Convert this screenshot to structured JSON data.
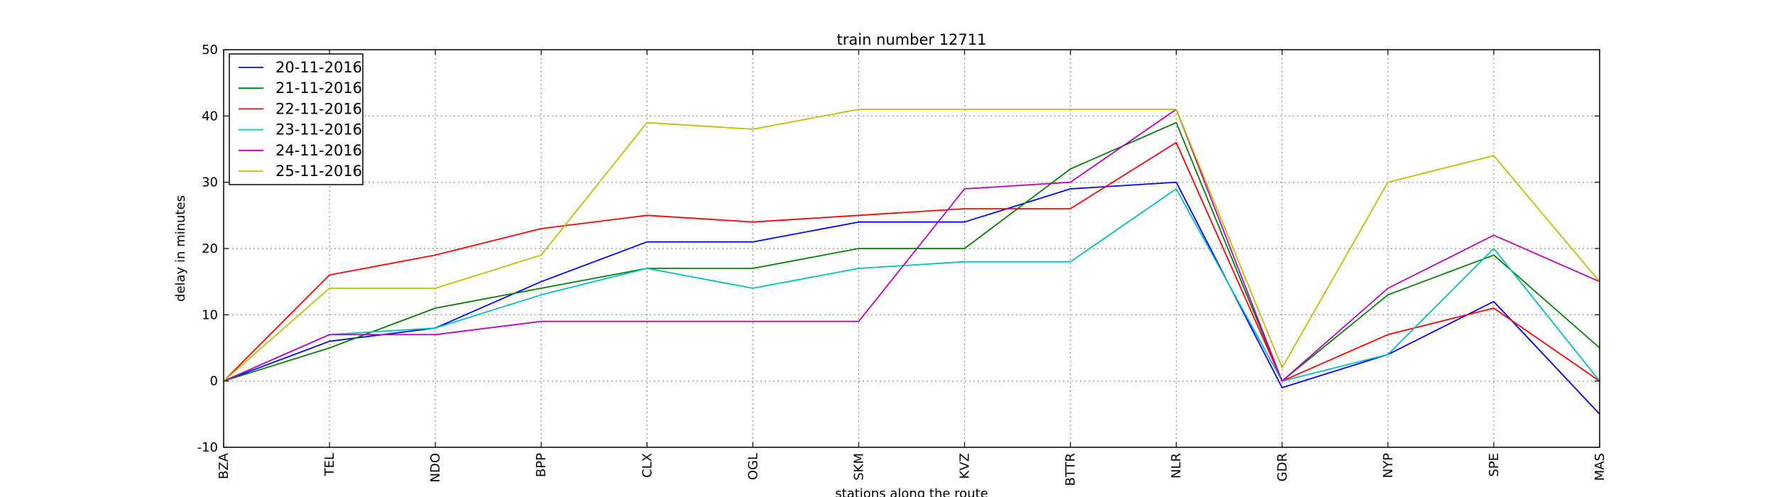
{
  "chart_data": {
    "type": "line",
    "title": "train number 12711",
    "xlabel": "stations along the route",
    "ylabel": "delay in minutes",
    "ylim": [
      -10,
      50
    ],
    "yticks": [
      -10,
      0,
      10,
      20,
      30,
      40,
      50
    ],
    "grid": true,
    "legend_position": "top-left",
    "categories": [
      "BZA",
      "TEL",
      "NDO",
      "BPP",
      "CLX",
      "OGL",
      "SKM",
      "KVZ",
      "BTTR",
      "NLR",
      "GDR",
      "NYP",
      "SPE",
      "MAS"
    ],
    "series": [
      {
        "name": "20-11-2016",
        "color": "#0000ff",
        "values": [
          0,
          6,
          8,
          15,
          21,
          21,
          24,
          24,
          29,
          30,
          -1,
          4,
          12,
          -5
        ]
      },
      {
        "name": "21-11-2016",
        "color": "#008000",
        "values": [
          0,
          5,
          11,
          14,
          17,
          17,
          20,
          20,
          32,
          39,
          0,
          13,
          19,
          5
        ]
      },
      {
        "name": "22-11-2016",
        "color": "#ff0000",
        "values": [
          0,
          16,
          19,
          23,
          25,
          24,
          25,
          26,
          26,
          36,
          0,
          7,
          11,
          0
        ]
      },
      {
        "name": "23-11-2016",
        "color": "#00bfbf",
        "values": [
          0,
          7,
          8,
          13,
          17,
          14,
          17,
          18,
          18,
          29,
          0,
          4,
          20,
          0
        ]
      },
      {
        "name": "24-11-2016",
        "color": "#bf00bf",
        "values": [
          0,
          7,
          7,
          9,
          9,
          9,
          9,
          29,
          30,
          41,
          0,
          14,
          22,
          15
        ]
      },
      {
        "name": "25-11-2016",
        "color": "#bfbf00",
        "values": [
          0,
          14,
          14,
          19,
          39,
          38,
          41,
          41,
          41,
          41,
          2,
          30,
          34,
          15
        ]
      }
    ]
  }
}
